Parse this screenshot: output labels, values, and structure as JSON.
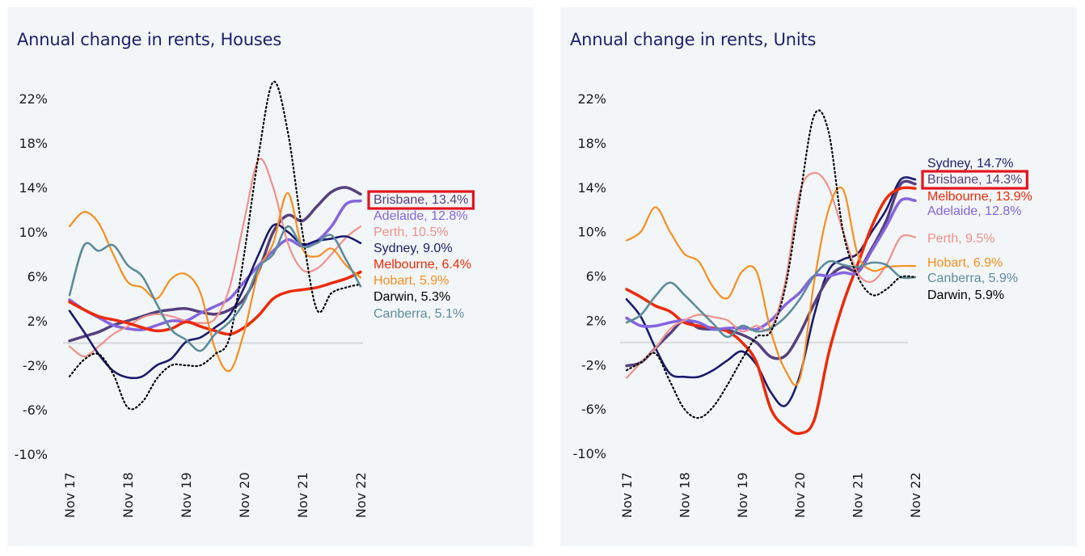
{
  "chart_data": [
    {
      "type": "line",
      "title": "Annual change in rents, Houses",
      "xlabel": "",
      "ylabel": "",
      "x_ticks": [
        "Nov 17",
        "Nov 18",
        "Nov 19",
        "Nov 20",
        "Nov 21",
        "Nov 22"
      ],
      "y_ticks": [
        "22%",
        "18%",
        "14%",
        "10%",
        "6%",
        "2%",
        "-2%",
        "-6%",
        "-10%"
      ],
      "ylim": [
        -10,
        22
      ],
      "x_range_years": [
        2017.833,
        2022.833
      ],
      "zero_line": true,
      "grid": false,
      "legend": "end-of-line labels, right",
      "highlighted_label": "Brisbane",
      "x": [
        0,
        0.25,
        0.5,
        0.75,
        1,
        1.25,
        1.5,
        1.75,
        2,
        2.25,
        2.5,
        2.75,
        3,
        3.25,
        3.5,
        3.75,
        4,
        4.25,
        4.5,
        4.75,
        5
      ],
      "series": [
        {
          "name": "Brisbane",
          "label": "Brisbane, 13.4%",
          "final": 13.4,
          "color": "#56407f",
          "width": 3.5,
          "dash": false,
          "values": [
            0.2,
            0.6,
            1.0,
            1.6,
            2.0,
            2.4,
            2.8,
            3.0,
            3.1,
            2.8,
            2.6,
            3.0,
            4.0,
            6.5,
            10.0,
            11.5,
            11.0,
            12.3,
            13.6,
            14.0,
            13.4
          ]
        },
        {
          "name": "Adelaide",
          "label": "Adelaide, 12.8%",
          "final": 12.8,
          "color": "#8465e0",
          "width": 3.5,
          "dash": false,
          "values": [
            3.9,
            3.0,
            2.3,
            1.6,
            1.3,
            1.2,
            1.6,
            2.0,
            2.0,
            2.7,
            3.3,
            4.0,
            5.5,
            7.0,
            8.3,
            9.3,
            8.7,
            9.2,
            10.5,
            12.5,
            12.8
          ]
        },
        {
          "name": "Perth",
          "label": "Perth, 10.5%",
          "final": 10.5,
          "color": "#f0918b",
          "width": 2.2,
          "dash": false,
          "values": [
            -0.3,
            -1.2,
            -0.3,
            0.8,
            1.5,
            2.3,
            2.6,
            2.4,
            2.0,
            1.8,
            2.2,
            5.0,
            11.0,
            16.5,
            14.0,
            9.0,
            6.6,
            6.7,
            8.0,
            9.5,
            10.5
          ]
        },
        {
          "name": "Sydney",
          "label": "Sydney, 9.0%",
          "final": 9.0,
          "color": "#1b1b6e",
          "width": 2.6,
          "dash": false,
          "values": [
            2.9,
            1.0,
            -1.0,
            -2.5,
            -3.1,
            -3.0,
            -2.0,
            -1.4,
            0.1,
            0.5,
            1.4,
            2.5,
            5.0,
            8.0,
            10.6,
            10.0,
            8.9,
            9.2,
            9.4,
            9.6,
            9.0
          ]
        },
        {
          "name": "Melbourne",
          "label": "Melbourne, 6.4%",
          "final": 6.4,
          "color": "#ee2a08",
          "width": 3.5,
          "dash": false,
          "values": [
            3.7,
            3.0,
            2.4,
            2.1,
            1.8,
            1.4,
            1.1,
            1.3,
            1.9,
            1.5,
            1.1,
            0.8,
            1.4,
            2.5,
            4.0,
            4.6,
            4.8,
            5.0,
            5.4,
            5.8,
            6.4
          ]
        },
        {
          "name": "Hobart",
          "label": "Hobart, 5.9%",
          "final": 5.9,
          "color": "#f98e1d",
          "width": 2.2,
          "dash": false,
          "values": [
            10.5,
            11.8,
            10.8,
            8.0,
            5.5,
            5.0,
            4.0,
            5.8,
            6.2,
            4.5,
            -0.5,
            -2.5,
            1.0,
            6.5,
            9.0,
            13.5,
            8.5,
            7.8,
            8.5,
            7.0,
            5.9
          ]
        },
        {
          "name": "Darwin",
          "label": "Darwin, 5.3%",
          "final": 5.3,
          "color": "#000000",
          "width": 1.8,
          "dash": true,
          "values": [
            -3.0,
            -1.5,
            -1.0,
            -2.8,
            -5.8,
            -5.3,
            -3.2,
            -2.0,
            -2.0,
            -2.0,
            -1.0,
            0.5,
            8.0,
            17.0,
            23.5,
            19.0,
            10.0,
            3.0,
            4.5,
            5.0,
            5.3
          ]
        },
        {
          "name": "Canberra",
          "label": "Canberra, 5.1%",
          "final": 5.1,
          "color": "#5d8b9c",
          "width": 2.6,
          "dash": false,
          "values": [
            4.3,
            8.8,
            8.3,
            8.8,
            7.0,
            6.0,
            3.5,
            1.2,
            0.3,
            -0.7,
            0.8,
            1.9,
            3.7,
            6.8,
            8.0,
            10.5,
            8.7,
            9.0,
            9.7,
            7.5,
            5.1
          ]
        }
      ]
    },
    {
      "type": "line",
      "title": "Annual change in rents, Units",
      "xlabel": "",
      "ylabel": "",
      "x_ticks": [
        "Nov 17",
        "Nov 18",
        "Nov 19",
        "Nov 20",
        "Nov 21",
        "Nov 22"
      ],
      "y_ticks": [
        "22%",
        "18%",
        "14%",
        "10%",
        "6%",
        "2%",
        "-2%",
        "-6%",
        "-10%"
      ],
      "ylim": [
        -10,
        22
      ],
      "x_range_years": [
        2017.833,
        2022.833
      ],
      "zero_line": true,
      "grid": false,
      "legend": "end-of-line labels, right",
      "highlighted_label": "Brisbane",
      "x": [
        0,
        0.25,
        0.5,
        0.75,
        1,
        1.25,
        1.5,
        1.75,
        2,
        2.25,
        2.5,
        2.75,
        3,
        3.25,
        3.5,
        3.75,
        4,
        4.25,
        4.5,
        4.75,
        5
      ],
      "series": [
        {
          "name": "Sydney",
          "label": "Sydney, 14.7%",
          "final": 14.7,
          "color": "#1b1b6e",
          "width": 2.6,
          "dash": false,
          "values": [
            3.9,
            2.3,
            -0.5,
            -2.8,
            -3.1,
            -3.1,
            -2.5,
            -1.6,
            -0.8,
            -2.0,
            -4.5,
            -5.7,
            -3.0,
            2.5,
            6.5,
            7.5,
            8.0,
            10.0,
            12.0,
            14.7,
            14.7
          ]
        },
        {
          "name": "Brisbane",
          "label": "Brisbane, 14.3%",
          "final": 14.3,
          "color": "#56407f",
          "width": 3.5,
          "dash": false,
          "values": [
            -2.1,
            -1.8,
            -0.5,
            0.8,
            2.0,
            1.3,
            1.2,
            1.1,
            0.7,
            0.0,
            -1.3,
            -1.2,
            0.8,
            3.5,
            5.8,
            6.8,
            6.5,
            8.5,
            11.0,
            14.3,
            14.3
          ]
        },
        {
          "name": "Melbourne",
          "label": "Melbourne, 13.9%",
          "final": 13.9,
          "color": "#ee2a08",
          "width": 3.5,
          "dash": false,
          "values": [
            4.8,
            4.1,
            3.3,
            2.8,
            1.8,
            1.5,
            1.3,
            1.0,
            0.0,
            -1.8,
            -6.0,
            -7.6,
            -8.2,
            -7.0,
            -1.0,
            3.5,
            7.0,
            10.5,
            13.0,
            13.9,
            13.9
          ]
        },
        {
          "name": "Adelaide",
          "label": "Adelaide, 12.8%",
          "final": 12.8,
          "color": "#8465e0",
          "width": 3.5,
          "dash": false,
          "values": [
            2.2,
            1.5,
            1.5,
            1.8,
            2.0,
            1.8,
            1.2,
            1.3,
            1.3,
            1.2,
            2.0,
            3.4,
            4.5,
            6.0,
            6.0,
            6.3,
            6.3,
            8.3,
            10.5,
            12.8,
            12.8
          ]
        },
        {
          "name": "Perth",
          "label": "Perth, 9.5%",
          "final": 9.5,
          "color": "#f0918b",
          "width": 2.2,
          "dash": false,
          "values": [
            -3.2,
            -1.8,
            -0.5,
            1.2,
            2.0,
            2.5,
            2.3,
            2.0,
            1.0,
            1.5,
            1.3,
            5.5,
            13.5,
            15.3,
            14.0,
            10.0,
            6.3,
            5.5,
            7.0,
            9.5,
            9.5
          ]
        },
        {
          "name": "Hobart",
          "label": "Hobart, 6.9%",
          "final": 6.9,
          "color": "#f98e1d",
          "width": 2.2,
          "dash": false,
          "values": [
            9.2,
            10.0,
            12.2,
            10.0,
            8.0,
            7.3,
            5.0,
            4.0,
            6.4,
            6.4,
            1.0,
            -2.5,
            -3.3,
            5.5,
            12.0,
            13.8,
            8.0,
            6.5,
            6.8,
            6.9,
            6.9
          ]
        },
        {
          "name": "Canberra",
          "label": "Canberra, 5.9%",
          "final": 5.9,
          "color": "#5d8b9c",
          "width": 2.6,
          "dash": false,
          "values": [
            1.8,
            2.5,
            4.2,
            5.4,
            4.3,
            3.0,
            1.7,
            0.5,
            1.5,
            1.0,
            1.3,
            2.3,
            3.9,
            6.0,
            7.3,
            7.0,
            6.8,
            7.2,
            7.0,
            5.9,
            5.9
          ]
        },
        {
          "name": "Darwin",
          "label": "Darwin, 5.9%",
          "final": 5.9,
          "color": "#000000",
          "width": 1.8,
          "dash": true,
          "values": [
            -2.5,
            -1.8,
            -1.0,
            -3.5,
            -6.0,
            -6.8,
            -5.8,
            -3.8,
            -1.5,
            0.5,
            1.0,
            5.0,
            13.0,
            20.5,
            19.0,
            10.0,
            6.0,
            4.3,
            4.8,
            5.9,
            5.9
          ]
        }
      ]
    }
  ]
}
